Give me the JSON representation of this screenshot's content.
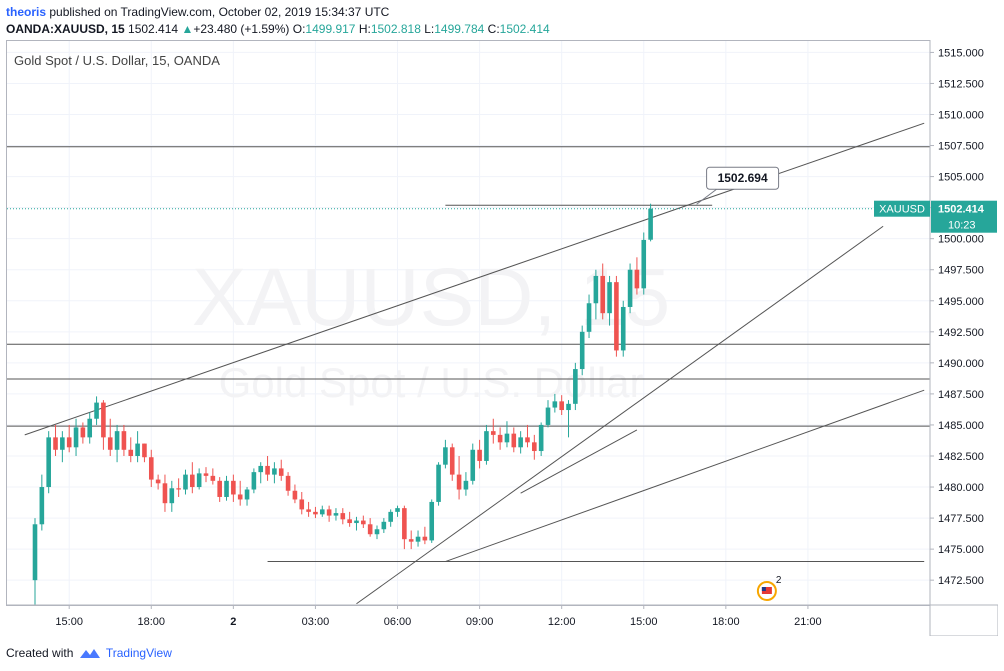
{
  "header": {
    "user": "theoris",
    "published_text": "published on TradingView.com, October 02, 2019 15:34:37 UTC"
  },
  "quote_bar": {
    "symbol": "OANDA:XAUUSD, 15",
    "last": "1502.414",
    "change_arrow": "▲",
    "change": "+23.480 (+1.59%)",
    "o_label": "O:",
    "o_value": "1499.917",
    "h_label": "H:",
    "h_value": "1502.818",
    "l_label": "L:",
    "l_value": "1499.784",
    "c_label": "C:",
    "c_value": "1502.414"
  },
  "footer": {
    "created_with": "Created with",
    "brand": "TradingView"
  },
  "colors": {
    "up": "#26a69a",
    "down": "#ef5350",
    "line": "#555555",
    "price_label": "#26a69a",
    "grid": "#f0f3fa"
  },
  "chart_data": {
    "type": "candlestick",
    "title": "Gold Spot / U.S. Dollar, 15, OANDA",
    "watermark_symbol": "XAUUSD, 15",
    "watermark_description": "Gold Spot / U.S. Dollar",
    "ylim": [
      1470.5,
      1516.0
    ],
    "y_ticks": [
      "1472.500",
      "1475.000",
      "1477.500",
      "1480.000",
      "1482.500",
      "1485.000",
      "1487.500",
      "1490.000",
      "1492.500",
      "1495.000",
      "1497.500",
      "1500.000",
      "1502.500",
      "1505.000",
      "1507.500",
      "1510.000",
      "1512.500",
      "1515.000"
    ],
    "x_ticks": [
      {
        "label": "15:00",
        "bar": 5
      },
      {
        "label": "18:00",
        "bar": 17
      },
      {
        "label": "2",
        "bar": 29,
        "bold": true
      },
      {
        "label": "03:00",
        "bar": 41
      },
      {
        "label": "06:00",
        "bar": 53
      },
      {
        "label": "09:00",
        "bar": 65
      },
      {
        "label": "12:00",
        "bar": 77
      },
      {
        "label": "15:00",
        "bar": 89
      },
      {
        "label": "18:00",
        "bar": 101
      },
      {
        "label": "21:00",
        "bar": 113
      }
    ],
    "last_price": {
      "symbol": "XAUUSD",
      "value": 1502.414,
      "label": "1502.414",
      "countdown": "10:23"
    },
    "callout": {
      "label": "1502.694",
      "value": 1502.694
    },
    "horizontal_lines": [
      1507.4,
      1491.5,
      1488.7,
      1484.9
    ],
    "short_horizontal_lines": [
      {
        "value": 1502.694,
        "from_bar": 60,
        "to_bar": 99
      },
      {
        "value": 1474.0,
        "from_bar": 34,
        "to_bar": 130
      }
    ],
    "trend_lines": [
      {
        "from": {
          "bar": -1.5,
          "value": 1484.2
        },
        "to": {
          "bar": 130,
          "value": 1509.3
        }
      },
      {
        "from": {
          "bar": 47,
          "value": 1470.6
        },
        "to": {
          "bar": 124,
          "value": 1501.0
        }
      },
      {
        "from": {
          "bar": 60,
          "value": 1474.0
        },
        "to": {
          "bar": 130,
          "value": 1487.8
        }
      },
      {
        "from": {
          "bar": 71,
          "value": 1479.5
        },
        "to": {
          "bar": 88,
          "value": 1484.6
        }
      }
    ],
    "event_marker": {
      "bar": 107,
      "count": "2"
    },
    "candles": [
      [
        1472.5,
        1477.5,
        1470.5,
        1477.0
      ],
      [
        1477.0,
        1481.0,
        1476.5,
        1480.0
      ],
      [
        1480.0,
        1484.5,
        1479.5,
        1484.0
      ],
      [
        1484.0,
        1485.0,
        1482.5,
        1483.0
      ],
      [
        1483.0,
        1484.5,
        1482.0,
        1484.0
      ],
      [
        1484.0,
        1485.0,
        1482.8,
        1483.2
      ],
      [
        1483.2,
        1485.5,
        1482.5,
        1484.8
      ],
      [
        1484.8,
        1485.2,
        1483.5,
        1484.0
      ],
      [
        1484.0,
        1486.0,
        1483.5,
        1485.5
      ],
      [
        1485.5,
        1487.3,
        1485.0,
        1486.8
      ],
      [
        1486.8,
        1487.0,
        1483.0,
        1484.0
      ],
      [
        1484.0,
        1485.5,
        1482.5,
        1483.0
      ],
      [
        1483.0,
        1485.0,
        1482.0,
        1484.5
      ],
      [
        1484.5,
        1485.0,
        1482.5,
        1483.0
      ],
      [
        1483.0,
        1484.0,
        1482.0,
        1482.5
      ],
      [
        1482.5,
        1484.5,
        1482.0,
        1483.5
      ],
      [
        1483.5,
        1483.5,
        1482.0,
        1482.4
      ],
      [
        1482.4,
        1483.0,
        1480.0,
        1480.6
      ],
      [
        1480.6,
        1481.0,
        1479.8,
        1480.3
      ],
      [
        1480.3,
        1481.0,
        1478.0,
        1478.7
      ],
      [
        1478.7,
        1480.5,
        1478.0,
        1479.9
      ],
      [
        1479.9,
        1480.7,
        1479.2,
        1479.8
      ],
      [
        1479.8,
        1481.4,
        1479.4,
        1481.0
      ],
      [
        1481.0,
        1482.0,
        1479.5,
        1480.0
      ],
      [
        1480.0,
        1481.5,
        1479.8,
        1481.1
      ],
      [
        1481.1,
        1481.6,
        1480.4,
        1480.9
      ],
      [
        1480.9,
        1481.5,
        1480.2,
        1480.5
      ],
      [
        1480.5,
        1480.8,
        1478.8,
        1479.2
      ],
      [
        1479.2,
        1480.9,
        1478.9,
        1480.5
      ],
      [
        1480.5,
        1481.0,
        1478.8,
        1479.4
      ],
      [
        1479.4,
        1480.5,
        1478.5,
        1479.0
      ],
      [
        1479.0,
        1480.0,
        1478.5,
        1479.8
      ],
      [
        1479.8,
        1481.5,
        1479.5,
        1481.2
      ],
      [
        1481.2,
        1482.0,
        1480.3,
        1481.7
      ],
      [
        1481.7,
        1482.5,
        1480.5,
        1481.0
      ],
      [
        1481.0,
        1482.0,
        1480.3,
        1481.5
      ],
      [
        1481.5,
        1482.2,
        1480.5,
        1480.9
      ],
      [
        1480.9,
        1481.2,
        1479.3,
        1479.7
      ],
      [
        1479.7,
        1480.2,
        1478.7,
        1479.0
      ],
      [
        1479.0,
        1479.6,
        1477.8,
        1478.2
      ],
      [
        1478.2,
        1478.8,
        1477.6,
        1478.0
      ],
      [
        1478.0,
        1478.4,
        1477.5,
        1477.8
      ],
      [
        1477.8,
        1478.5,
        1477.6,
        1478.2
      ],
      [
        1478.2,
        1478.5,
        1477.2,
        1477.7
      ],
      [
        1477.7,
        1478.3,
        1477.3,
        1477.9
      ],
      [
        1477.9,
        1478.3,
        1477.0,
        1477.4
      ],
      [
        1477.4,
        1478.0,
        1476.8,
        1477.1
      ],
      [
        1477.1,
        1477.6,
        1476.5,
        1477.3
      ],
      [
        1477.3,
        1477.7,
        1476.7,
        1477.0
      ],
      [
        1477.0,
        1477.5,
        1476.0,
        1476.2
      ],
      [
        1476.2,
        1476.9,
        1475.8,
        1476.6
      ],
      [
        1476.6,
        1477.5,
        1476.3,
        1477.2
      ],
      [
        1477.2,
        1478.2,
        1476.8,
        1478.0
      ],
      [
        1478.0,
        1478.5,
        1477.6,
        1478.3
      ],
      [
        1478.3,
        1478.5,
        1475.0,
        1475.8
      ],
      [
        1475.8,
        1476.5,
        1475.0,
        1475.6
      ],
      [
        1475.6,
        1476.5,
        1475.2,
        1476.0
      ],
      [
        1476.0,
        1476.8,
        1475.4,
        1475.7
      ],
      [
        1475.7,
        1479.0,
        1475.5,
        1478.8
      ],
      [
        1478.8,
        1482.0,
        1478.5,
        1481.8
      ],
      [
        1481.8,
        1483.8,
        1481.5,
        1483.2
      ],
      [
        1483.2,
        1483.5,
        1480.5,
        1481.0
      ],
      [
        1481.0,
        1482.5,
        1479.0,
        1479.8
      ],
      [
        1479.8,
        1481.2,
        1479.3,
        1480.5
      ],
      [
        1480.5,
        1483.5,
        1480.2,
        1483.0
      ],
      [
        1483.0,
        1483.8,
        1481.5,
        1482.1
      ],
      [
        1482.1,
        1485.0,
        1481.8,
        1484.5
      ],
      [
        1484.5,
        1485.5,
        1483.5,
        1484.2
      ],
      [
        1484.2,
        1484.8,
        1483.0,
        1483.6
      ],
      [
        1483.6,
        1485.3,
        1483.2,
        1484.3
      ],
      [
        1484.3,
        1484.8,
        1482.8,
        1483.2
      ],
      [
        1483.2,
        1484.5,
        1482.7,
        1484.0
      ],
      [
        1484.0,
        1485.0,
        1483.2,
        1483.6
      ],
      [
        1483.6,
        1484.2,
        1482.2,
        1482.9
      ],
      [
        1482.9,
        1485.2,
        1482.5,
        1485.0
      ],
      [
        1485.0,
        1487.0,
        1484.8,
        1486.4
      ],
      [
        1486.4,
        1487.5,
        1486.0,
        1486.9
      ],
      [
        1486.9,
        1487.4,
        1485.8,
        1486.2
      ],
      [
        1486.2,
        1487.0,
        1484.0,
        1486.7
      ],
      [
        1486.7,
        1490.0,
        1486.2,
        1489.5
      ],
      [
        1489.5,
        1493.0,
        1489.0,
        1492.5
      ],
      [
        1492.5,
        1495.5,
        1492.0,
        1494.8
      ],
      [
        1494.8,
        1497.5,
        1493.5,
        1497.0
      ],
      [
        1497.0,
        1498.0,
        1493.5,
        1494.0
      ],
      [
        1494.0,
        1497.0,
        1493.0,
        1496.5
      ],
      [
        1496.5,
        1497.0,
        1490.5,
        1491.0
      ],
      [
        1491.0,
        1495.0,
        1490.5,
        1494.5
      ],
      [
        1494.5,
        1498.0,
        1494.0,
        1497.5
      ],
      [
        1497.5,
        1498.5,
        1495.5,
        1496.0
      ],
      [
        1496.0,
        1500.5,
        1495.5,
        1499.9
      ],
      [
        1499.917,
        1502.818,
        1499.784,
        1502.414
      ]
    ]
  }
}
